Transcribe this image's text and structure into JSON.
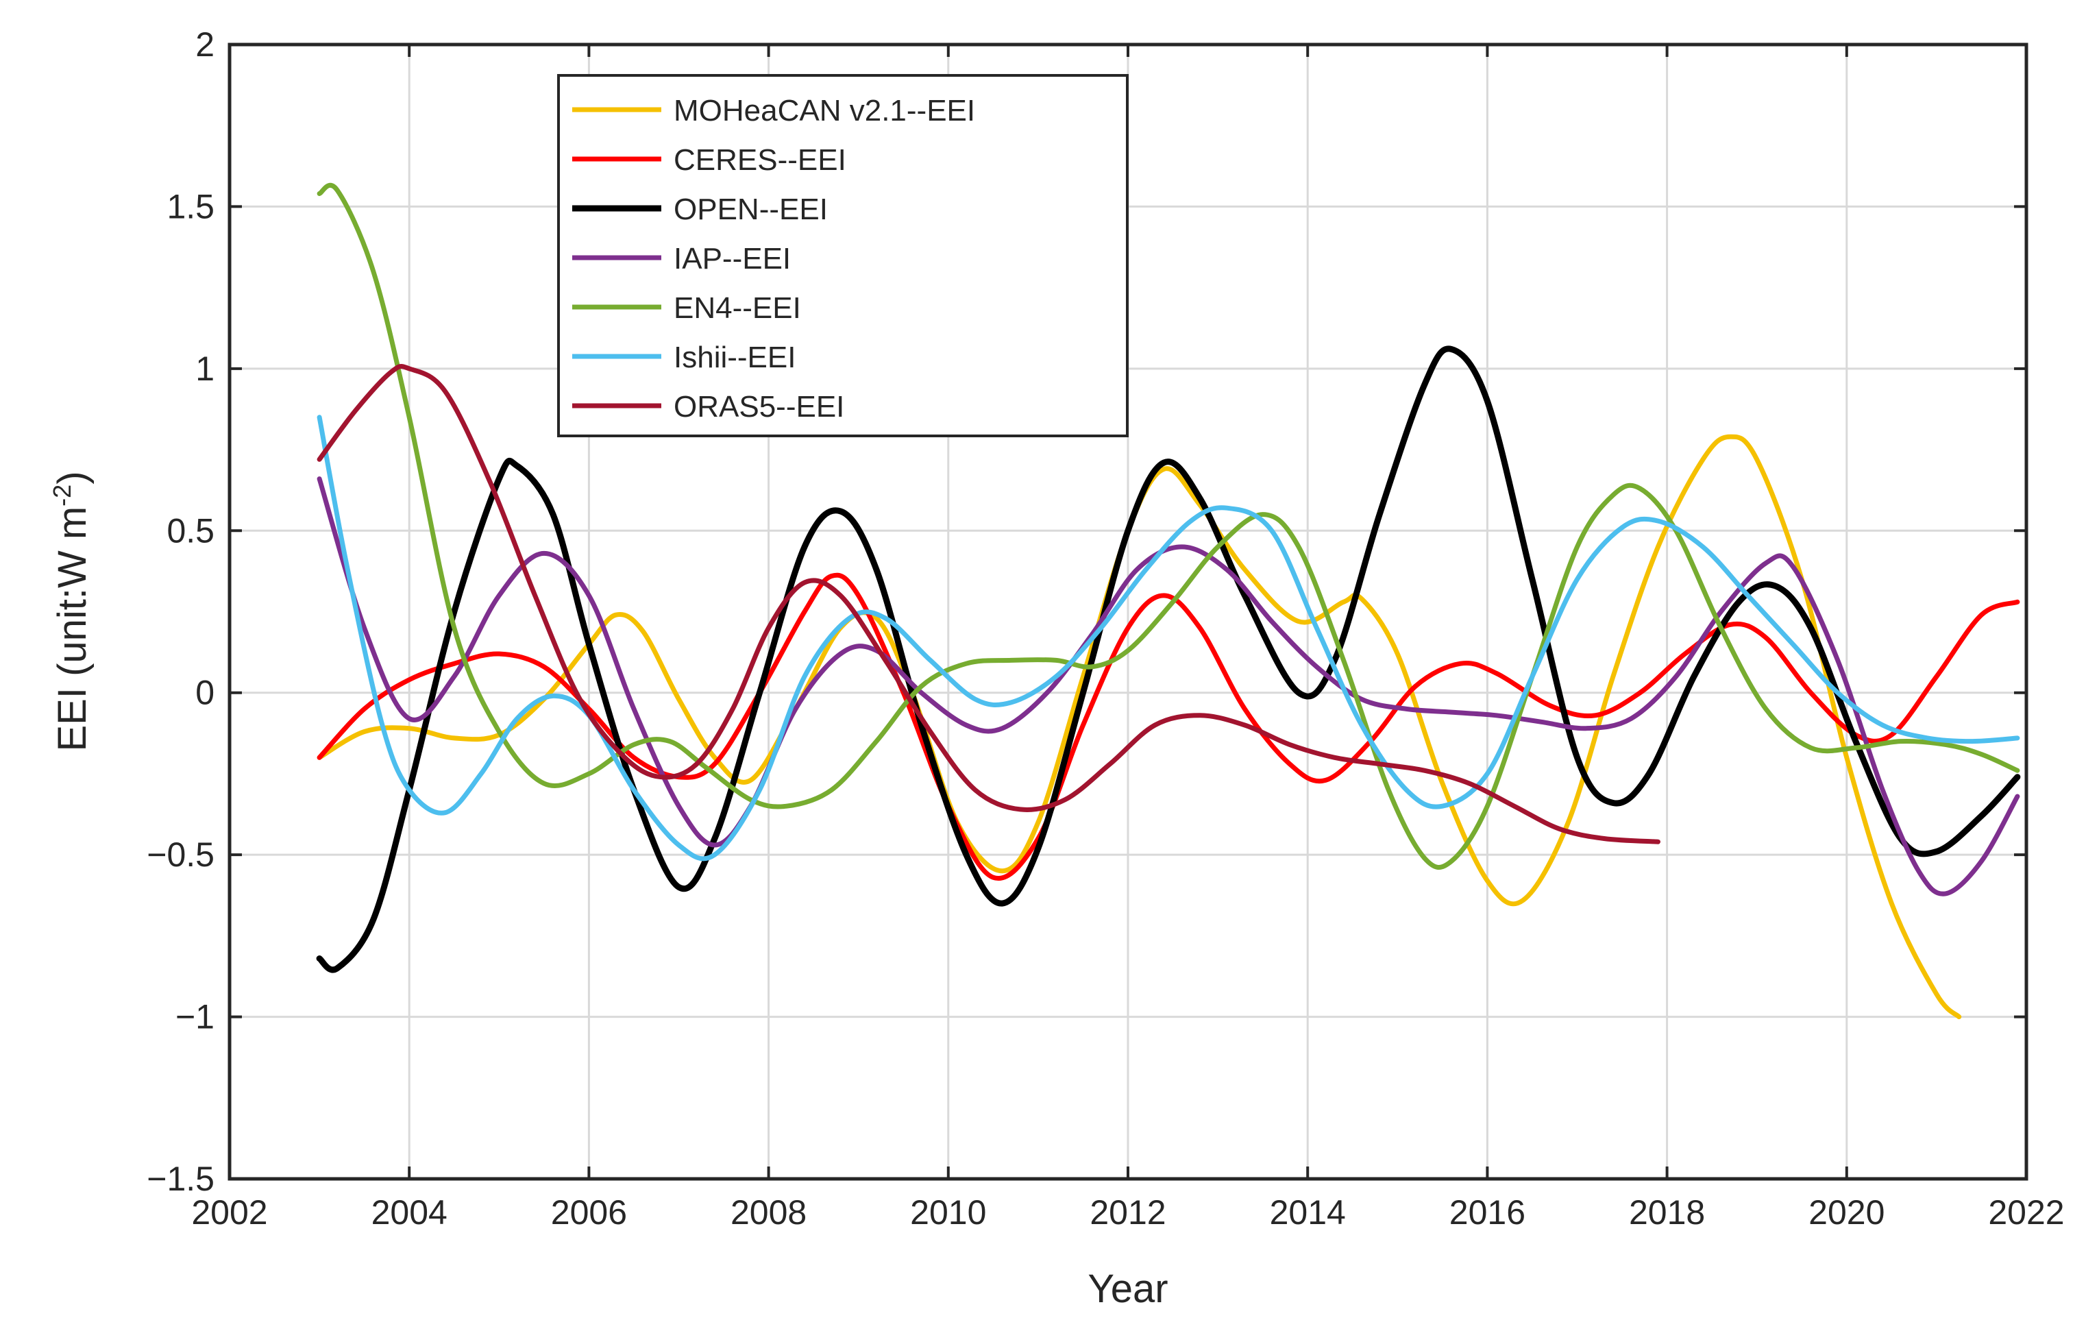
{
  "chart_data": {
    "type": "line",
    "title": "",
    "xlabel": "Year",
    "ylabel": "EEI (unit:W m",
    "ylabel_superscript": "-2",
    "ylabel_close": ")",
    "xlim": [
      2002,
      2022
    ],
    "ylim": [
      -1.5,
      2
    ],
    "xticks": [
      2002,
      2004,
      2006,
      2008,
      2010,
      2012,
      2014,
      2016,
      2018,
      2020,
      2022
    ],
    "yticks": [
      -1.5,
      -1,
      -0.5,
      0,
      0.5,
      1,
      1.5,
      2
    ],
    "ytick_labels": [
      "−1.5",
      "−1",
      "−0.5",
      "0",
      "0.5",
      "1",
      "1.5",
      "2"
    ],
    "grid": true,
    "legend_position": "upper-left inside plot",
    "series": [
      {
        "name": "MOHeaCAN v2.1--EEI",
        "color": "#f5c000",
        "points": [
          [
            2003.0,
            -0.2
          ],
          [
            2003.5,
            -0.12
          ],
          [
            2004.0,
            -0.11
          ],
          [
            2004.5,
            -0.14
          ],
          [
            2005.0,
            -0.13
          ],
          [
            2005.5,
            -0.02
          ],
          [
            2006.0,
            0.15
          ],
          [
            2006.3,
            0.24
          ],
          [
            2006.6,
            0.19
          ],
          [
            2007.0,
            -0.02
          ],
          [
            2007.4,
            -0.2
          ],
          [
            2007.8,
            -0.27
          ],
          [
            2008.3,
            -0.05
          ],
          [
            2008.8,
            0.2
          ],
          [
            2009.2,
            0.23
          ],
          [
            2009.6,
            0.0
          ],
          [
            2010.1,
            -0.4
          ],
          [
            2010.6,
            -0.55
          ],
          [
            2011.0,
            -0.4
          ],
          [
            2011.5,
            0.05
          ],
          [
            2012.0,
            0.5
          ],
          [
            2012.4,
            0.69
          ],
          [
            2012.8,
            0.58
          ],
          [
            2013.3,
            0.38
          ],
          [
            2013.9,
            0.22
          ],
          [
            2014.4,
            0.28
          ],
          [
            2014.6,
            0.29
          ],
          [
            2015.0,
            0.12
          ],
          [
            2015.5,
            -0.28
          ],
          [
            2016.0,
            -0.58
          ],
          [
            2016.4,
            -0.64
          ],
          [
            2016.9,
            -0.4
          ],
          [
            2017.4,
            0.05
          ],
          [
            2017.9,
            0.45
          ],
          [
            2018.4,
            0.72
          ],
          [
            2018.7,
            0.79
          ],
          [
            2019.0,
            0.72
          ],
          [
            2019.5,
            0.35
          ],
          [
            2020.0,
            -0.2
          ],
          [
            2020.5,
            -0.65
          ],
          [
            2021.0,
            -0.93
          ],
          [
            2021.25,
            -1.0
          ]
        ]
      },
      {
        "name": "CERES--EEI",
        "color": "#ff0000",
        "points": [
          [
            2003.0,
            -0.2
          ],
          [
            2003.5,
            -0.05
          ],
          [
            2004.0,
            0.04
          ],
          [
            2004.5,
            0.09
          ],
          [
            2005.0,
            0.12
          ],
          [
            2005.5,
            0.08
          ],
          [
            2006.0,
            -0.05
          ],
          [
            2006.5,
            -0.2
          ],
          [
            2007.0,
            -0.26
          ],
          [
            2007.4,
            -0.22
          ],
          [
            2007.9,
            0.0
          ],
          [
            2008.4,
            0.25
          ],
          [
            2008.7,
            0.36
          ],
          [
            2009.0,
            0.3
          ],
          [
            2009.5,
            0.0
          ],
          [
            2010.0,
            -0.35
          ],
          [
            2010.5,
            -0.57
          ],
          [
            2011.0,
            -0.45
          ],
          [
            2011.5,
            -0.1
          ],
          [
            2012.0,
            0.2
          ],
          [
            2012.4,
            0.3
          ],
          [
            2012.8,
            0.2
          ],
          [
            2013.3,
            -0.05
          ],
          [
            2013.8,
            -0.22
          ],
          [
            2014.2,
            -0.27
          ],
          [
            2014.7,
            -0.15
          ],
          [
            2015.2,
            0.02
          ],
          [
            2015.7,
            0.09
          ],
          [
            2016.1,
            0.06
          ],
          [
            2016.7,
            -0.04
          ],
          [
            2017.2,
            -0.07
          ],
          [
            2017.7,
            0.0
          ],
          [
            2018.2,
            0.12
          ],
          [
            2018.7,
            0.21
          ],
          [
            2019.1,
            0.17
          ],
          [
            2019.6,
            0.0
          ],
          [
            2020.1,
            -0.13
          ],
          [
            2020.5,
            -0.13
          ],
          [
            2021.0,
            0.05
          ],
          [
            2021.5,
            0.24
          ],
          [
            2021.9,
            0.28
          ]
        ]
      },
      {
        "name": "OPEN--EEI",
        "color": "#000000",
        "points": [
          [
            2003.0,
            -0.82
          ],
          [
            2003.2,
            -0.85
          ],
          [
            2003.6,
            -0.7
          ],
          [
            2004.0,
            -0.3
          ],
          [
            2004.5,
            0.25
          ],
          [
            2005.0,
            0.66
          ],
          [
            2005.2,
            0.7
          ],
          [
            2005.6,
            0.55
          ],
          [
            2006.0,
            0.15
          ],
          [
            2006.5,
            -0.3
          ],
          [
            2007.0,
            -0.6
          ],
          [
            2007.4,
            -0.45
          ],
          [
            2007.9,
            0.0
          ],
          [
            2008.4,
            0.45
          ],
          [
            2008.8,
            0.56
          ],
          [
            2009.2,
            0.38
          ],
          [
            2009.7,
            -0.1
          ],
          [
            2010.2,
            -0.5
          ],
          [
            2010.6,
            -0.65
          ],
          [
            2011.0,
            -0.48
          ],
          [
            2011.5,
            0.0
          ],
          [
            2012.0,
            0.5
          ],
          [
            2012.4,
            0.71
          ],
          [
            2012.8,
            0.6
          ],
          [
            2013.3,
            0.3
          ],
          [
            2013.9,
            0.0
          ],
          [
            2014.3,
            0.1
          ],
          [
            2014.8,
            0.55
          ],
          [
            2015.3,
            0.95
          ],
          [
            2015.6,
            1.06
          ],
          [
            2016.0,
            0.9
          ],
          [
            2016.5,
            0.35
          ],
          [
            2017.0,
            -0.2
          ],
          [
            2017.4,
            -0.34
          ],
          [
            2017.8,
            -0.25
          ],
          [
            2018.3,
            0.05
          ],
          [
            2018.8,
            0.28
          ],
          [
            2019.2,
            0.33
          ],
          [
            2019.6,
            0.2
          ],
          [
            2020.1,
            -0.15
          ],
          [
            2020.6,
            -0.45
          ],
          [
            2021.0,
            -0.49
          ],
          [
            2021.5,
            -0.38
          ],
          [
            2021.9,
            -0.26
          ]
        ]
      },
      {
        "name": "IAP--EEI",
        "color": "#7e2f8e",
        "points": [
          [
            2003.0,
            0.66
          ],
          [
            2003.5,
            0.2
          ],
          [
            2004.0,
            -0.08
          ],
          [
            2004.5,
            0.05
          ],
          [
            2005.0,
            0.3
          ],
          [
            2005.5,
            0.43
          ],
          [
            2006.0,
            0.3
          ],
          [
            2006.5,
            -0.05
          ],
          [
            2007.0,
            -0.35
          ],
          [
            2007.4,
            -0.47
          ],
          [
            2007.8,
            -0.35
          ],
          [
            2008.3,
            -0.05
          ],
          [
            2008.8,
            0.12
          ],
          [
            2009.2,
            0.13
          ],
          [
            2009.7,
            0.0
          ],
          [
            2010.2,
            -0.1
          ],
          [
            2010.6,
            -0.11
          ],
          [
            2011.1,
            0.0
          ],
          [
            2011.6,
            0.18
          ],
          [
            2012.1,
            0.38
          ],
          [
            2012.6,
            0.45
          ],
          [
            2013.1,
            0.38
          ],
          [
            2013.6,
            0.22
          ],
          [
            2014.1,
            0.08
          ],
          [
            2014.6,
            -0.02
          ],
          [
            2015.1,
            -0.05
          ],
          [
            2015.6,
            -0.06
          ],
          [
            2016.1,
            -0.07
          ],
          [
            2016.6,
            -0.09
          ],
          [
            2017.1,
            -0.11
          ],
          [
            2017.6,
            -0.08
          ],
          [
            2018.1,
            0.05
          ],
          [
            2018.6,
            0.25
          ],
          [
            2019.1,
            0.4
          ],
          [
            2019.4,
            0.39
          ],
          [
            2019.9,
            0.1
          ],
          [
            2020.4,
            -0.3
          ],
          [
            2020.8,
            -0.55
          ],
          [
            2021.1,
            -0.62
          ],
          [
            2021.5,
            -0.52
          ],
          [
            2021.9,
            -0.32
          ]
        ]
      },
      {
        "name": "EN4--EEI",
        "color": "#77ac30",
        "points": [
          [
            2003.0,
            1.54
          ],
          [
            2003.2,
            1.55
          ],
          [
            2003.6,
            1.3
          ],
          [
            2004.0,
            0.85
          ],
          [
            2004.5,
            0.2
          ],
          [
            2005.0,
            -0.12
          ],
          [
            2005.5,
            -0.28
          ],
          [
            2006.0,
            -0.25
          ],
          [
            2006.5,
            -0.16
          ],
          [
            2006.9,
            -0.15
          ],
          [
            2007.3,
            -0.23
          ],
          [
            2007.8,
            -0.33
          ],
          [
            2008.2,
            -0.35
          ],
          [
            2008.7,
            -0.3
          ],
          [
            2009.2,
            -0.15
          ],
          [
            2009.7,
            0.02
          ],
          [
            2010.2,
            0.09
          ],
          [
            2010.7,
            0.1
          ],
          [
            2011.2,
            0.1
          ],
          [
            2011.6,
            0.08
          ],
          [
            2012.0,
            0.13
          ],
          [
            2012.5,
            0.28
          ],
          [
            2013.0,
            0.45
          ],
          [
            2013.5,
            0.55
          ],
          [
            2013.9,
            0.45
          ],
          [
            2014.4,
            0.1
          ],
          [
            2014.9,
            -0.3
          ],
          [
            2015.3,
            -0.51
          ],
          [
            2015.6,
            -0.52
          ],
          [
            2016.0,
            -0.35
          ],
          [
            2016.5,
            0.05
          ],
          [
            2017.0,
            0.45
          ],
          [
            2017.4,
            0.61
          ],
          [
            2017.7,
            0.63
          ],
          [
            2018.1,
            0.5
          ],
          [
            2018.6,
            0.2
          ],
          [
            2019.1,
            -0.05
          ],
          [
            2019.6,
            -0.17
          ],
          [
            2020.1,
            -0.17
          ],
          [
            2020.6,
            -0.15
          ],
          [
            2021.1,
            -0.16
          ],
          [
            2021.5,
            -0.19
          ],
          [
            2021.9,
            -0.24
          ]
        ]
      },
      {
        "name": "Ishii--EEI",
        "color": "#4dbeee",
        "points": [
          [
            2003.0,
            0.85
          ],
          [
            2003.3,
            0.4
          ],
          [
            2003.7,
            -0.1
          ],
          [
            2004.0,
            -0.3
          ],
          [
            2004.4,
            -0.37
          ],
          [
            2004.8,
            -0.25
          ],
          [
            2005.2,
            -0.08
          ],
          [
            2005.6,
            -0.01
          ],
          [
            2006.0,
            -0.07
          ],
          [
            2006.5,
            -0.3
          ],
          [
            2007.0,
            -0.47
          ],
          [
            2007.4,
            -0.5
          ],
          [
            2007.9,
            -0.3
          ],
          [
            2008.4,
            0.05
          ],
          [
            2008.9,
            0.23
          ],
          [
            2009.3,
            0.23
          ],
          [
            2009.8,
            0.1
          ],
          [
            2010.3,
            -0.02
          ],
          [
            2010.7,
            -0.03
          ],
          [
            2011.2,
            0.05
          ],
          [
            2011.7,
            0.2
          ],
          [
            2012.2,
            0.38
          ],
          [
            2012.7,
            0.53
          ],
          [
            2013.1,
            0.57
          ],
          [
            2013.6,
            0.5
          ],
          [
            2014.1,
            0.2
          ],
          [
            2014.6,
            -0.1
          ],
          [
            2015.1,
            -0.3
          ],
          [
            2015.5,
            -0.35
          ],
          [
            2016.0,
            -0.25
          ],
          [
            2016.5,
            0.05
          ],
          [
            2017.0,
            0.35
          ],
          [
            2017.5,
            0.51
          ],
          [
            2017.9,
            0.53
          ],
          [
            2018.4,
            0.45
          ],
          [
            2018.9,
            0.3
          ],
          [
            2019.4,
            0.15
          ],
          [
            2019.9,
            0.0
          ],
          [
            2020.4,
            -0.1
          ],
          [
            2020.9,
            -0.14
          ],
          [
            2021.4,
            -0.15
          ],
          [
            2021.9,
            -0.14
          ]
        ]
      },
      {
        "name": "ORAS5--EEI",
        "color": "#a2142f",
        "points": [
          [
            2003.0,
            0.72
          ],
          [
            2003.4,
            0.87
          ],
          [
            2003.8,
            0.99
          ],
          [
            2004.0,
            1.0
          ],
          [
            2004.4,
            0.93
          ],
          [
            2004.9,
            0.65
          ],
          [
            2005.4,
            0.3
          ],
          [
            2005.9,
            -0.02
          ],
          [
            2006.4,
            -0.2
          ],
          [
            2006.8,
            -0.26
          ],
          [
            2007.2,
            -0.22
          ],
          [
            2007.6,
            -0.05
          ],
          [
            2008.0,
            0.2
          ],
          [
            2008.4,
            0.34
          ],
          [
            2008.8,
            0.3
          ],
          [
            2009.3,
            0.1
          ],
          [
            2009.8,
            -0.12
          ],
          [
            2010.3,
            -0.3
          ],
          [
            2010.8,
            -0.36
          ],
          [
            2011.3,
            -0.33
          ],
          [
            2011.8,
            -0.22
          ],
          [
            2012.3,
            -0.1
          ],
          [
            2012.8,
            -0.07
          ],
          [
            2013.3,
            -0.1
          ],
          [
            2013.8,
            -0.16
          ],
          [
            2014.3,
            -0.2
          ],
          [
            2014.8,
            -0.22
          ],
          [
            2015.3,
            -0.24
          ],
          [
            2015.8,
            -0.28
          ],
          [
            2016.3,
            -0.35
          ],
          [
            2016.8,
            -0.42
          ],
          [
            2017.3,
            -0.45
          ],
          [
            2017.9,
            -0.46
          ]
        ]
      }
    ]
  }
}
